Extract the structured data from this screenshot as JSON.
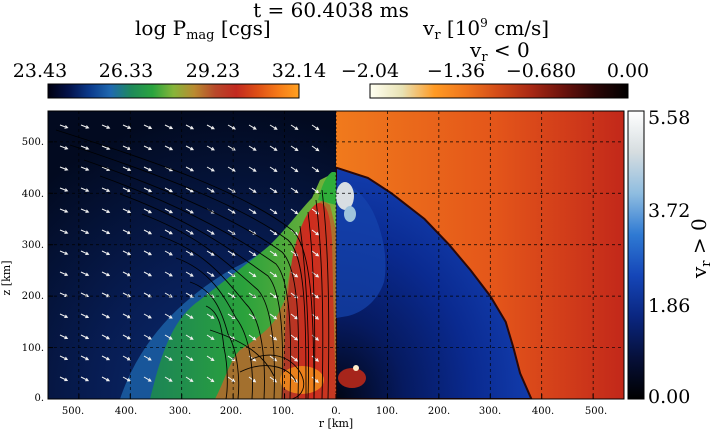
{
  "chart_data": {
    "type": "heatmap",
    "title": "t = 60.4038 ms",
    "left_panel": {
      "quantity": "log P",
      "quantity_sub": "mag",
      "unit": " [cgs]",
      "colorbar_ticks": [
        "23.43",
        "26.33",
        "29.23",
        "32.14"
      ],
      "range": [
        23.43,
        32.14
      ]
    },
    "right_panel": {
      "quantity": "v",
      "quantity_sub": "r",
      "unit_prefix": " [10",
      "unit_exp": "9",
      "unit_suffix": " cm/s]",
      "neg_label_main": "v",
      "neg_label_sub": "r",
      "neg_label_rest": " < 0",
      "neg_colorbar_ticks": [
        "−2.04",
        "−1.36",
        "−0.680",
        "0.00"
      ],
      "neg_range": [
        -2.04,
        0.0
      ],
      "pos_label_main": "v",
      "pos_label_sub": "r",
      "pos_label_rest": " > 0",
      "pos_colorbar_ticks": [
        "5.58",
        "3.72",
        "1.86",
        "0.00"
      ],
      "pos_range": [
        0.0,
        5.58
      ]
    },
    "xaxis": {
      "label": "r [km]",
      "ticks": [
        "500.",
        "400.",
        "300.",
        "200.",
        "100.",
        "0.",
        "100.",
        "200.",
        "300.",
        "400.",
        "500."
      ],
      "tick_values": [
        -500,
        -400,
        -300,
        -200,
        -100,
        0,
        100,
        200,
        300,
        400,
        500
      ],
      "range": [
        -560,
        560
      ]
    },
    "yaxis": {
      "label": "z [km]",
      "ticks": [
        "0.",
        "100.",
        "200.",
        "300.",
        "400.",
        "500."
      ],
      "tick_values": [
        0,
        100,
        200,
        300,
        400,
        500
      ],
      "range": [
        0,
        560
      ]
    },
    "grid": true,
    "shock_radius_km": {
      "z_values": [
        0,
        50,
        100,
        150,
        200,
        250,
        300,
        350,
        400,
        430,
        450
      ],
      "r_values": [
        380,
        358,
        345,
        330,
        300,
        262,
        220,
        172,
        108,
        62,
        0
      ]
    },
    "colors": {
      "pmag_scale": [
        "#000010",
        "#03124a",
        "#0b3a8c",
        "#1f69b0",
        "#1e8a5a",
        "#2aa43e",
        "#86b53a",
        "#b98a30",
        "#b8482a",
        "#c22a20",
        "#dd4e16",
        "#f57a18",
        "#ffa020"
      ],
      "vr_neg_scale": [
        "#fffff2",
        "#e8e2b4",
        "#ff9a24",
        "#ef741c",
        "#d24a18",
        "#a82814",
        "#6a120c",
        "#2b0606",
        "#000000"
      ],
      "vr_pos_scale": [
        "#000000",
        "#06103a",
        "#0a2680",
        "#1546b8",
        "#2f7ad3",
        "#8fbde0",
        "#d6dde0",
        "#ffffff"
      ]
    }
  }
}
